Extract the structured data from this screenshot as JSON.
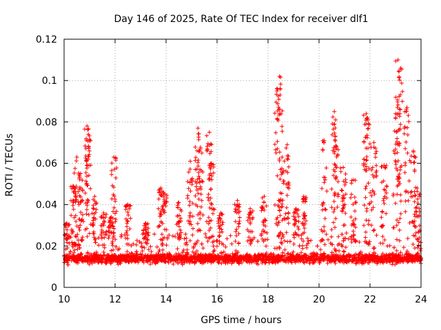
{
  "chart_data": {
    "type": "scatter",
    "title": "Day 146 of 2025, Rate Of TEC Index for receiver dlf1",
    "xlabel": "GPS time / hours",
    "ylabel": "ROTI / TECUs",
    "xlim": [
      10,
      24
    ],
    "ylim": [
      0,
      0.12
    ],
    "grid": true,
    "marker": "+",
    "series_color": "#ff0000",
    "xticks": [
      10,
      12,
      14,
      16,
      18,
      20,
      22,
      24
    ],
    "xtick_labels": [
      "10",
      "12",
      "14",
      "16",
      "18",
      "20",
      "22",
      "24"
    ],
    "yticks": [
      0,
      0.02,
      0.04,
      0.06,
      0.08,
      0.1,
      0.12
    ],
    "ytick_labels": [
      "0",
      "0.02",
      "0.04",
      "0.06",
      "0.08",
      "0.1",
      "0.12"
    ],
    "baseline_band": {
      "x_range": [
        10,
        24
      ],
      "y_range": [
        0.005,
        0.025
      ],
      "typical": 0.014
    },
    "peaks": [
      {
        "x": 10.1,
        "y": 0.031
      },
      {
        "x": 10.35,
        "y": 0.049
      },
      {
        "x": 10.5,
        "y": 0.063
      },
      {
        "x": 10.65,
        "y": 0.055
      },
      {
        "x": 10.9,
        "y": 0.078
      },
      {
        "x": 10.95,
        "y": 0.074
      },
      {
        "x": 11.2,
        "y": 0.044
      },
      {
        "x": 11.55,
        "y": 0.036
      },
      {
        "x": 11.85,
        "y": 0.034
      },
      {
        "x": 11.95,
        "y": 0.063
      },
      {
        "x": 12.5,
        "y": 0.04
      },
      {
        "x": 13.2,
        "y": 0.031
      },
      {
        "x": 13.8,
        "y": 0.048
      },
      {
        "x": 13.95,
        "y": 0.045
      },
      {
        "x": 14.5,
        "y": 0.041
      },
      {
        "x": 14.95,
        "y": 0.061
      },
      {
        "x": 15.25,
        "y": 0.077
      },
      {
        "x": 15.35,
        "y": 0.067
      },
      {
        "x": 15.7,
        "y": 0.075
      },
      {
        "x": 15.78,
        "y": 0.06
      },
      {
        "x": 16.15,
        "y": 0.036
      },
      {
        "x": 16.8,
        "y": 0.042
      },
      {
        "x": 17.3,
        "y": 0.038
      },
      {
        "x": 17.85,
        "y": 0.044
      },
      {
        "x": 18.35,
        "y": 0.095
      },
      {
        "x": 18.45,
        "y": 0.102
      },
      {
        "x": 18.55,
        "y": 0.063
      },
      {
        "x": 18.75,
        "y": 0.069
      },
      {
        "x": 19.1,
        "y": 0.038
      },
      {
        "x": 19.4,
        "y": 0.044
      },
      {
        "x": 20.2,
        "y": 0.071
      },
      {
        "x": 20.6,
        "y": 0.085
      },
      {
        "x": 20.65,
        "y": 0.081
      },
      {
        "x": 20.95,
        "y": 0.058
      },
      {
        "x": 21.35,
        "y": 0.052
      },
      {
        "x": 21.85,
        "y": 0.084
      },
      {
        "x": 21.9,
        "y": 0.082
      },
      {
        "x": 22.15,
        "y": 0.07
      },
      {
        "x": 22.55,
        "y": 0.059
      },
      {
        "x": 23.0,
        "y": 0.084
      },
      {
        "x": 23.1,
        "y": 0.11
      },
      {
        "x": 23.2,
        "y": 0.106
      },
      {
        "x": 23.45,
        "y": 0.087
      },
      {
        "x": 23.7,
        "y": 0.066
      },
      {
        "x": 23.85,
        "y": 0.048
      }
    ]
  }
}
